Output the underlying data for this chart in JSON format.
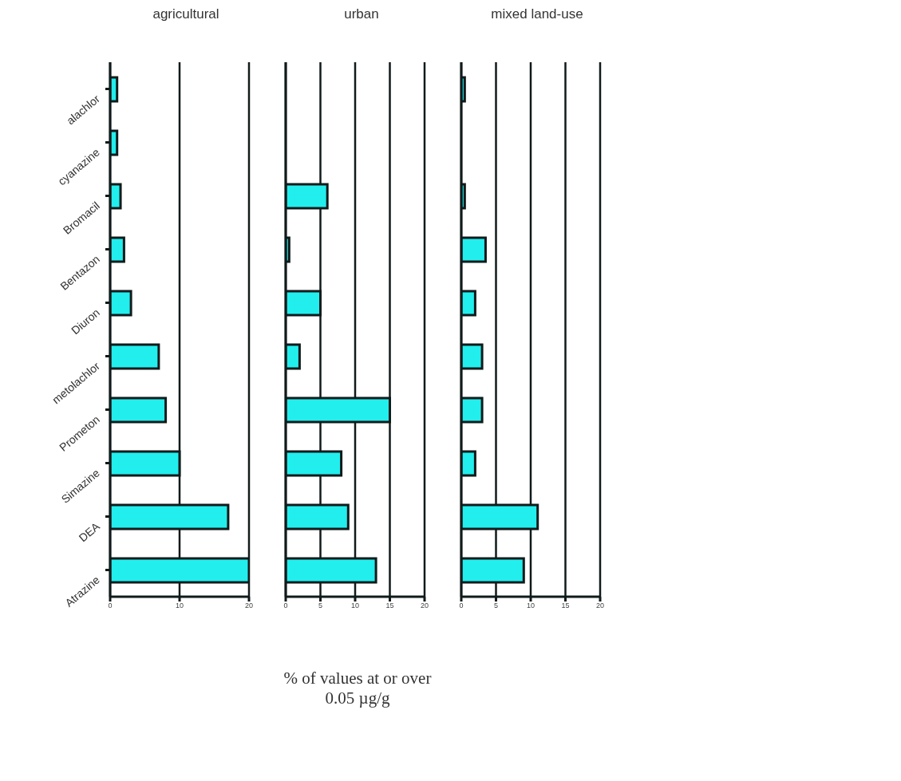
{
  "chart_data": [
    {
      "type": "bar",
      "orientation": "horizontal",
      "title": "agricultural",
      "categories": [
        "alachlor",
        "cyanazine",
        "Bromacil",
        "Bentazon",
        "Diuron",
        "metolachlor",
        "Prometon",
        "Simazine",
        "DEA",
        "Atrazine"
      ],
      "values": [
        1,
        1,
        1.5,
        2,
        3,
        7,
        8,
        10,
        17,
        20
      ],
      "color": "#22eeee",
      "xlim": [
        0,
        20
      ],
      "xticks": [
        0,
        10,
        20
      ],
      "grid": "x"
    },
    {
      "type": "bar",
      "orientation": "horizontal",
      "title": "urban",
      "xlabel": "% of values at or over 0.05 µg/g",
      "categories": [
        null,
        null,
        null,
        null,
        null,
        null,
        null,
        null,
        null,
        null
      ],
      "values": [
        0,
        0,
        6,
        0.5,
        5,
        2,
        15,
        8,
        9,
        13
      ],
      "color": "#22eeee",
      "xlim": [
        0,
        20
      ],
      "xticks": [
        0,
        5,
        10,
        15,
        20
      ],
      "grid": "x",
      "tick_labels": "x"
    },
    {
      "type": "bar",
      "orientation": "horizontal",
      "title": "mixed land-use",
      "categories": [
        null,
        null,
        null,
        null,
        null,
        null,
        null,
        null,
        null,
        null
      ],
      "values": [
        0.5,
        0,
        0.5,
        3.5,
        2,
        3,
        3,
        2,
        11,
        9
      ],
      "color": "#22eeee",
      "xlim": [
        0,
        20
      ],
      "xticks": [
        0,
        5,
        10,
        15,
        20
      ],
      "grid": "x",
      "tick_labels": "x"
    }
  ]
}
